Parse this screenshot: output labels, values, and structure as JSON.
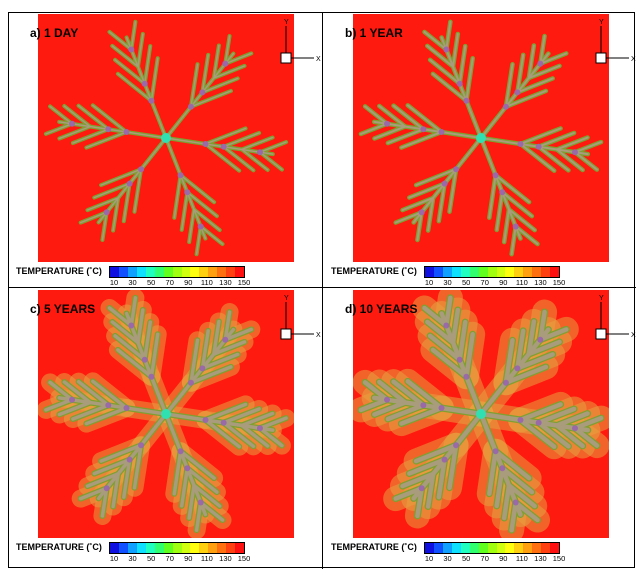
{
  "panels": [
    {
      "label": "a) 1 DAY"
    },
    {
      "label": "b) 1 YEAR"
    },
    {
      "label": "c) 5 YEARS"
    },
    {
      "label": "d) 10 YEARS"
    }
  ],
  "legend": {
    "title": "TEMPERATURE (˚C)",
    "ticks": [
      "10",
      "30",
      "50",
      "70",
      "90",
      "110",
      "130",
      "150"
    ],
    "colors": [
      "#1010e0",
      "#1050ff",
      "#10a0ff",
      "#10e0ff",
      "#20ffc0",
      "#30ff70",
      "#60ff20",
      "#a0ff10",
      "#d0ff10",
      "#ffff10",
      "#ffd010",
      "#ffa010",
      "#ff7010",
      "#ff4010",
      "#ff1010"
    ]
  },
  "axes": {
    "y_label": "Y",
    "x_label": "X"
  },
  "colors": {
    "background_hot": "#ff1a0f",
    "branch_outer": "#7fa030",
    "branch_inner": "#a89c7c",
    "node": "#9a6aa8",
    "center_node": "#30e0b0"
  }
}
